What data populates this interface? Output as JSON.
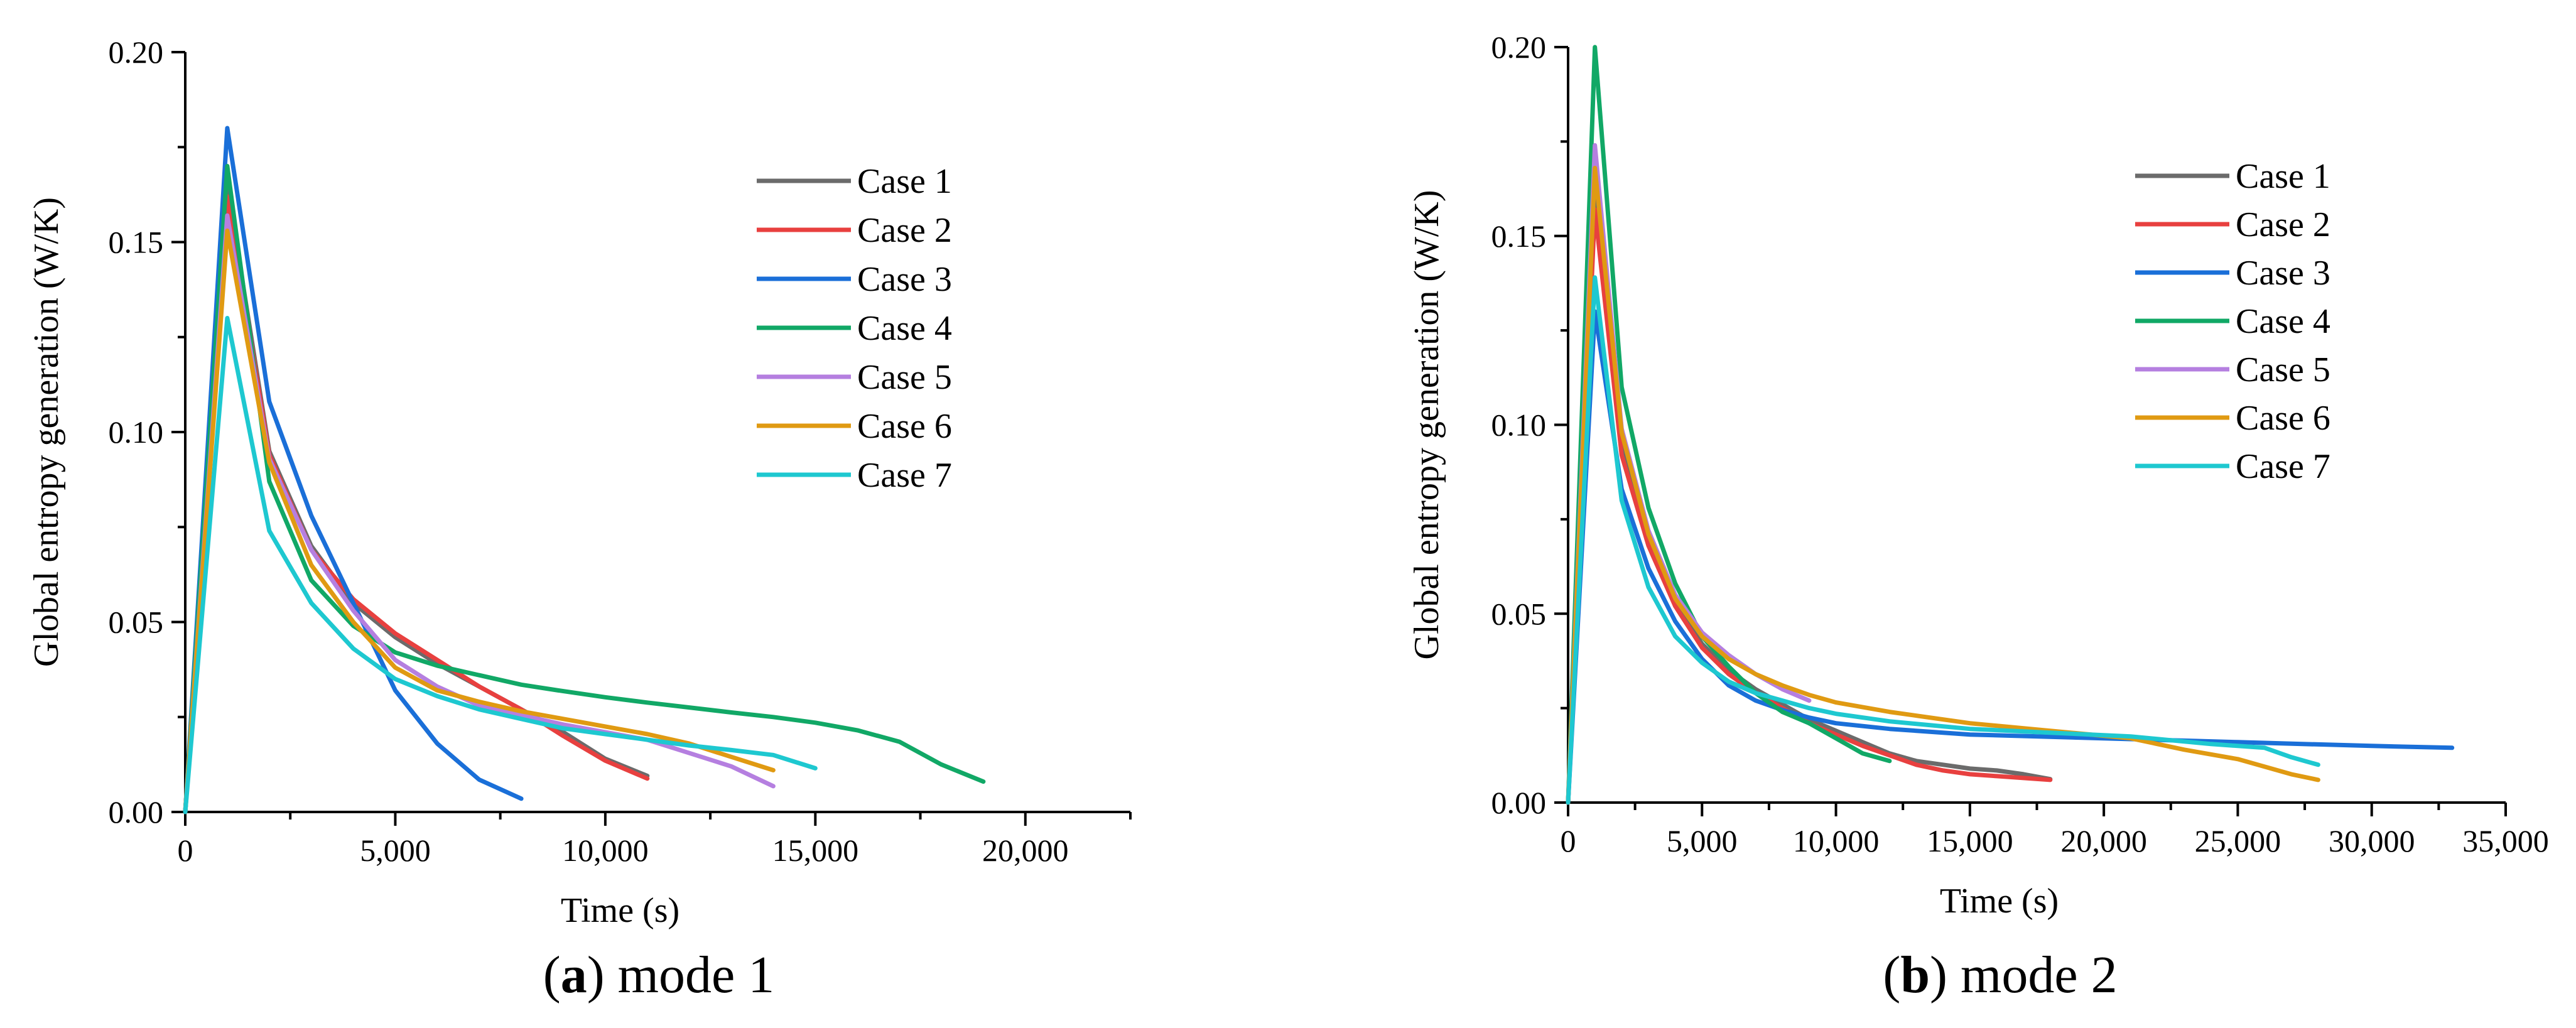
{
  "chart_data": [
    {
      "type": "line",
      "caption_bold": "a",
      "caption_rest": ") mode 1",
      "xlabel": "Time (s)",
      "ylabel": "Global entropy generation (W/K)",
      "xlim": [
        0,
        22500
      ],
      "ylim": [
        0,
        0.2
      ],
      "xticks": [
        0,
        5000,
        10000,
        15000,
        20000
      ],
      "xtick_labels": [
        "0",
        "5,000",
        "10,000",
        "15,000",
        "20,000"
      ],
      "yticks": [
        0,
        0.05,
        0.1,
        0.15,
        0.2
      ],
      "ytick_labels": [
        "0.00",
        "0.05",
        "0.10",
        "0.15",
        "0.20"
      ],
      "legend_position": "top-right",
      "series": [
        {
          "name": "Case 1",
          "color": "#6b6b6b",
          "x": [
            0,
            1000,
            2000,
            3000,
            4000,
            5000,
            6000,
            7000,
            8000,
            9000,
            10000,
            11000
          ],
          "y": [
            0,
            0.165,
            0.095,
            0.07,
            0.055,
            0.046,
            0.039,
            0.033,
            0.027,
            0.021,
            0.014,
            0.0095
          ]
        },
        {
          "name": "Case 2",
          "color": "#e8403f",
          "x": [
            0,
            1000,
            2000,
            3000,
            4000,
            5000,
            6000,
            7000,
            8000,
            9000,
            10000,
            11000
          ],
          "y": [
            0,
            0.162,
            0.094,
            0.069,
            0.056,
            0.047,
            0.04,
            0.033,
            0.027,
            0.02,
            0.0135,
            0.0088
          ]
        },
        {
          "name": "Case 3",
          "color": "#1a6fd8",
          "x": [
            0,
            1000,
            2000,
            3000,
            4000,
            5000,
            6000,
            7000,
            8000
          ],
          "y": [
            0,
            0.18,
            0.108,
            0.078,
            0.055,
            0.032,
            0.018,
            0.0085,
            0.0035
          ]
        },
        {
          "name": "Case 4",
          "color": "#11a866",
          "x": [
            0,
            1000,
            2000,
            3000,
            4000,
            5000,
            6000,
            7000,
            8000,
            9000,
            10000,
            11000,
            12000,
            13000,
            14000,
            15000,
            16000,
            17000,
            18000,
            19000
          ],
          "y": [
            0,
            0.17,
            0.087,
            0.061,
            0.049,
            0.042,
            0.0385,
            0.036,
            0.0335,
            0.0318,
            0.0302,
            0.0288,
            0.0275,
            0.0262,
            0.025,
            0.0235,
            0.0215,
            0.0185,
            0.0125,
            0.008
          ]
        },
        {
          "name": "Case 5",
          "color": "#b57fe0",
          "x": [
            0,
            1000,
            2000,
            3000,
            4000,
            5000,
            6000,
            7000,
            8000,
            9000,
            10000,
            11000,
            12000,
            13000,
            14000
          ],
          "y": [
            0,
            0.157,
            0.093,
            0.069,
            0.053,
            0.04,
            0.033,
            0.028,
            0.0255,
            0.023,
            0.021,
            0.019,
            0.0155,
            0.012,
            0.0068
          ]
        },
        {
          "name": "Case 6",
          "color": "#e09a12",
          "x": [
            0,
            1000,
            2000,
            3000,
            4000,
            5000,
            6000,
            7000,
            8000,
            9000,
            10000,
            11000,
            12000,
            13000,
            14000
          ],
          "y": [
            0,
            0.153,
            0.092,
            0.065,
            0.05,
            0.038,
            0.032,
            0.029,
            0.0265,
            0.0245,
            0.0225,
            0.0205,
            0.018,
            0.0145,
            0.011
          ]
        },
        {
          "name": "Case 7",
          "color": "#1ec8d0",
          "x": [
            0,
            1000,
            2000,
            3000,
            4000,
            5000,
            6000,
            7000,
            8000,
            9000,
            10000,
            11000,
            12000,
            13000,
            14000,
            15000
          ],
          "y": [
            0,
            0.13,
            0.074,
            0.055,
            0.043,
            0.035,
            0.0305,
            0.027,
            0.0245,
            0.022,
            0.0205,
            0.019,
            0.0175,
            0.0163,
            0.015,
            0.0115
          ]
        }
      ]
    },
    {
      "type": "line",
      "caption_bold": "b",
      "caption_rest": ") mode 2",
      "xlabel": "Time (s)",
      "ylabel": "Global entropy generation (W/K)",
      "xlim": [
        0,
        35000
      ],
      "ylim": [
        0,
        0.2
      ],
      "xticks": [
        0,
        5000,
        10000,
        15000,
        20000,
        25000,
        30000,
        35000
      ],
      "xtick_labels": [
        "0",
        "5,000",
        "10,000",
        "15,000",
        "20,000",
        "25,000",
        "30,000",
        "35,000"
      ],
      "yticks": [
        0,
        0.05,
        0.1,
        0.15,
        0.2
      ],
      "ytick_labels": [
        "0.00",
        "0.05",
        "0.10",
        "0.15",
        "0.20"
      ],
      "legend_position": "top-right",
      "series": [
        {
          "name": "Case 1",
          "color": "#6b6b6b",
          "x": [
            0,
            1000,
            2000,
            3000,
            4000,
            5000,
            6000,
            7000,
            8000,
            9000,
            10000,
            11000,
            12000,
            13000,
            14000,
            15000,
            16000,
            17000,
            18000
          ],
          "y": [
            0,
            0.163,
            0.095,
            0.07,
            0.053,
            0.042,
            0.035,
            0.03,
            0.026,
            0.022,
            0.019,
            0.016,
            0.013,
            0.011,
            0.01,
            0.009,
            0.0085,
            0.0075,
            0.0062
          ]
        },
        {
          "name": "Case 2",
          "color": "#e8403f",
          "x": [
            0,
            1000,
            2000,
            3000,
            4000,
            5000,
            6000,
            7000,
            8000,
            9000,
            10000,
            11000,
            12000,
            13000,
            14000,
            15000,
            16000,
            17000,
            18000
          ],
          "y": [
            0,
            0.157,
            0.092,
            0.068,
            0.052,
            0.041,
            0.034,
            0.029,
            0.025,
            0.021,
            0.018,
            0.015,
            0.0125,
            0.01,
            0.0085,
            0.0075,
            0.007,
            0.0065,
            0.006
          ]
        },
        {
          "name": "Case 3",
          "color": "#1a6fd8",
          "x": [
            0,
            1000,
            2000,
            3000,
            4000,
            5000,
            6000,
            7000,
            8000,
            9000,
            10000,
            12000,
            15000,
            20000,
            25000,
            30000,
            33000
          ],
          "y": [
            0,
            0.13,
            0.083,
            0.062,
            0.048,
            0.038,
            0.031,
            0.027,
            0.0245,
            0.0225,
            0.021,
            0.0195,
            0.018,
            0.017,
            0.016,
            0.015,
            0.0145
          ]
        },
        {
          "name": "Case 4",
          "color": "#11a866",
          "x": [
            0,
            1000,
            2000,
            3000,
            4000,
            5000,
            6000,
            7000,
            8000,
            9000,
            10000,
            11000,
            12000
          ],
          "y": [
            0,
            0.2,
            0.11,
            0.078,
            0.058,
            0.044,
            0.036,
            0.029,
            0.024,
            0.021,
            0.017,
            0.013,
            0.011
          ]
        },
        {
          "name": "Case 5",
          "color": "#b57fe0",
          "x": [
            0,
            1000,
            2000,
            3000,
            4000,
            5000,
            6000,
            7000,
            8000,
            9000
          ],
          "y": [
            0,
            0.174,
            0.099,
            0.072,
            0.055,
            0.045,
            0.039,
            0.034,
            0.03,
            0.027
          ]
        },
        {
          "name": "Case 6",
          "color": "#e09a12",
          "x": [
            0,
            1000,
            2000,
            3000,
            4000,
            5000,
            6000,
            7000,
            8000,
            9000,
            10000,
            12000,
            15000,
            18000,
            21000,
            23000,
            25000,
            27000,
            28000
          ],
          "y": [
            0,
            0.168,
            0.098,
            0.071,
            0.054,
            0.044,
            0.038,
            0.034,
            0.031,
            0.0285,
            0.0265,
            0.024,
            0.021,
            0.019,
            0.017,
            0.014,
            0.0115,
            0.0075,
            0.006
          ]
        },
        {
          "name": "Case 7",
          "color": "#1ec8d0",
          "x": [
            0,
            1000,
            2000,
            3000,
            4000,
            5000,
            6000,
            7000,
            8000,
            9000,
            10000,
            12000,
            15000,
            18000,
            21000,
            24000,
            26000,
            27000,
            28000
          ],
          "y": [
            0,
            0.139,
            0.08,
            0.057,
            0.044,
            0.037,
            0.032,
            0.029,
            0.027,
            0.025,
            0.0235,
            0.0215,
            0.0195,
            0.0185,
            0.0175,
            0.0155,
            0.0145,
            0.012,
            0.01
          ]
        }
      ]
    }
  ]
}
